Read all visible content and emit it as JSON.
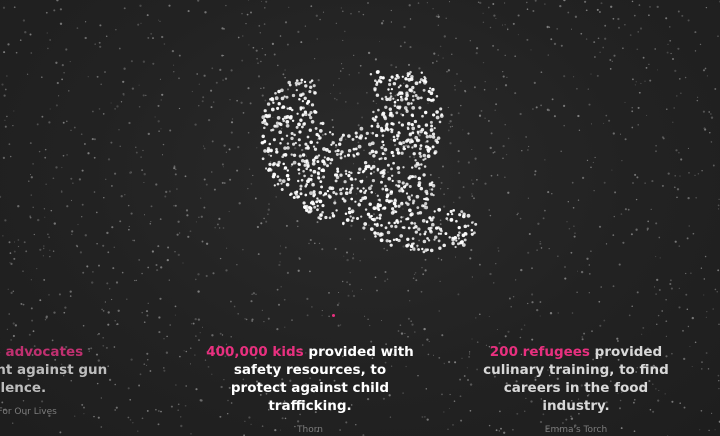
{
  "logo": {
    "icon": "dove-icon",
    "color": "#ffffff"
  },
  "accent_color": "#e8307f",
  "impact_cards": [
    {
      "stat": "th state advocates",
      "text_1": "",
      "text_2": "ored to fight against gun violence.",
      "org": "March For Our Lives"
    },
    {
      "stat": "400,000 kids",
      "text_1": " provided with safety resources, to protect against child trafficking.",
      "text_2": "",
      "org": "Thorn"
    },
    {
      "stat": "200 refugees",
      "text_1": " provided culinary training, to find careers in the food industry.",
      "text_2": "",
      "org": "Emma's Torch"
    }
  ]
}
